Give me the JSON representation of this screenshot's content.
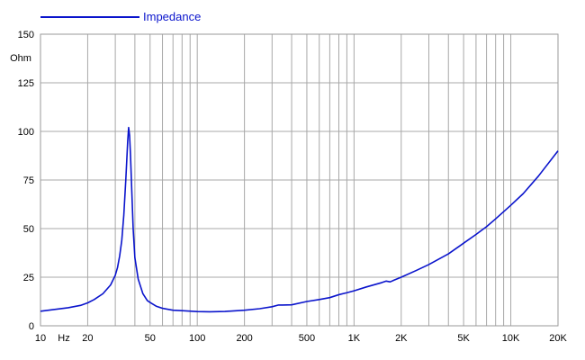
{
  "chart_data": {
    "type": "line",
    "title": "",
    "xlabel": "Hz",
    "ylabel": "Ohm",
    "x_scale": "log",
    "xlim": [
      10,
      20000
    ],
    "ylim": [
      0,
      150
    ],
    "grid": true,
    "legend": {
      "placement": "top-left",
      "entries": [
        "Impedance"
      ]
    },
    "x_ticks": [
      {
        "value": 10,
        "label": "10"
      },
      {
        "value": 20,
        "label": "20"
      },
      {
        "value": 50,
        "label": "50"
      },
      {
        "value": 100,
        "label": "100"
      },
      {
        "value": 200,
        "label": "200"
      },
      {
        "value": 500,
        "label": "500"
      },
      {
        "value": 1000,
        "label": "1K"
      },
      {
        "value": 2000,
        "label": "2K"
      },
      {
        "value": 5000,
        "label": "5K"
      },
      {
        "value": 10000,
        "label": "10K"
      },
      {
        "value": 20000,
        "label": "20K"
      }
    ],
    "x_gridlines": [
      10,
      20,
      30,
      40,
      50,
      60,
      70,
      80,
      90,
      100,
      200,
      300,
      400,
      500,
      600,
      700,
      800,
      900,
      1000,
      2000,
      3000,
      4000,
      5000,
      6000,
      7000,
      8000,
      9000,
      10000,
      20000
    ],
    "y_ticks": [
      0,
      25,
      50,
      75,
      100,
      125,
      150
    ],
    "series": [
      {
        "name": "Impedance",
        "color": "#0a14cc",
        "x": [
          10,
          12,
          15,
          18,
          20,
          22,
          25,
          28,
          30,
          31,
          32,
          33,
          34,
          35,
          35.5,
          36,
          36.5,
          37,
          37.5,
          38,
          39,
          40,
          42,
          45,
          48,
          50,
          55,
          60,
          70,
          80,
          100,
          120,
          150,
          200,
          250,
          300,
          330,
          350,
          400,
          500,
          600,
          700,
          800,
          900,
          1000,
          1200,
          1500,
          1600,
          1700,
          1800,
          2000,
          2500,
          3000,
          4000,
          5000,
          6000,
          7000,
          8000,
          10000,
          12000,
          15000,
          20000
        ],
        "values": [
          7.5,
          8.3,
          9.3,
          10.5,
          11.8,
          13.5,
          16.5,
          21,
          26,
          30,
          36,
          44,
          57,
          75,
          85,
          95,
          102,
          98,
          88,
          75,
          50,
          35,
          24,
          16.5,
          13,
          12,
          10,
          9,
          8,
          7.8,
          7.3,
          7.2,
          7.4,
          8,
          8.8,
          9.8,
          10.7,
          10.7,
          10.8,
          12.5,
          13.5,
          14.5,
          16,
          17,
          18,
          20,
          22.2,
          23,
          22.6,
          23.5,
          25,
          28.5,
          31.5,
          37,
          42.5,
          47,
          51,
          55,
          62,
          68,
          77,
          90
        ]
      }
    ]
  }
}
